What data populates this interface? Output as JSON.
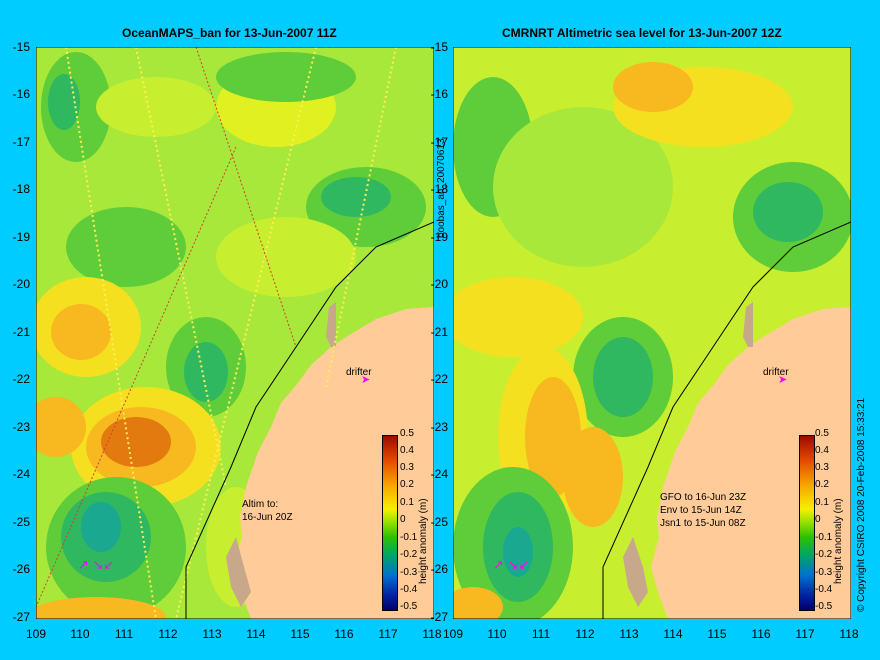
{
  "left_panel": {
    "title": "OceanMAPS_ban for 13-Jun-2007 11Z",
    "drifter_label": "drifter",
    "altim_line1": "Altim to:",
    "altim_line2": "16-Jun 20Z"
  },
  "right_panel": {
    "title": "CMRNRT Altimetric sea level  for 13-Jun-2007 12Z",
    "drifter_label": "drifter",
    "sat_lines": [
      "GFO to 16-Jun 23Z",
      "Env to 15-Jun 14Z",
      "Jsn1 to 15-Jun 08Z"
    ]
  },
  "side_label": "boobas_an_20070613",
  "copyright": "© Copyright CSIRO 2008    20-Feb-2008 15:33:21",
  "y_ticks": [
    "-15",
    "-16",
    "-17",
    "-18",
    "-19",
    "-20",
    "-21",
    "-22",
    "-23",
    "-24",
    "-25",
    "-26",
    "-27"
  ],
  "x_ticks": [
    "109",
    "110",
    "111",
    "112",
    "113",
    "114",
    "115",
    "116",
    "117",
    "118"
  ],
  "colorbar": {
    "title": "height anomaly (m)",
    "ticks": [
      "0.5",
      "0.4",
      "0.3",
      "0.2",
      "0.1",
      "0",
      "-0.1",
      "-0.2",
      "-0.3",
      "-0.4",
      "-0.5"
    ]
  },
  "colors": {
    "background": "#00ccff",
    "land": "#ffcc99",
    "sea_base": "#a8e83a",
    "drifter": "#ff00ff"
  }
}
